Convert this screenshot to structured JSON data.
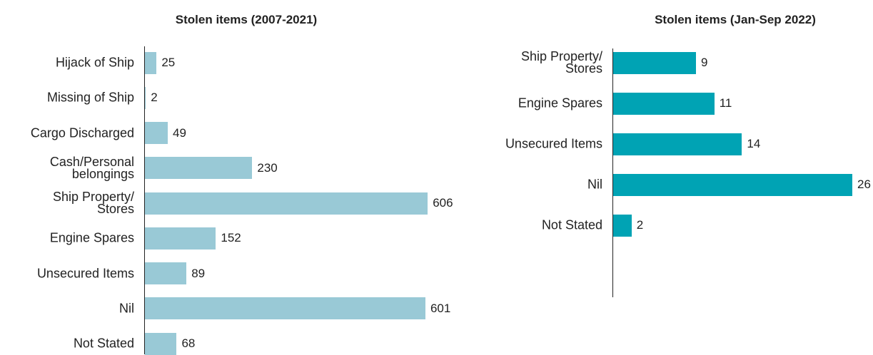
{
  "chart_data": [
    {
      "type": "bar",
      "orientation": "horizontal",
      "title": "Stolen items (2007-2021)",
      "categories": [
        "Hijack of Ship",
        "Missing of Ship",
        "Cargo Discharged",
        "Cash/Personal\nbelongings",
        "Ship Property/\nStores",
        "Engine Spares",
        "Unsecured Items",
        "Nil",
        "Not Stated"
      ],
      "values": [
        25,
        2,
        49,
        230,
        606,
        152,
        89,
        601,
        68
      ],
      "color": "#99c9d6",
      "xlim": [
        0,
        650
      ]
    },
    {
      "type": "bar",
      "orientation": "horizontal",
      "title": "Stolen items (Jan-Sep 2022)",
      "categories": [
        "Ship Property/\nStores",
        "Engine Spares",
        "Unsecured Items",
        "Nil",
        "Not Stated"
      ],
      "values": [
        9,
        11,
        14,
        26,
        2
      ],
      "color": "#00a3b4",
      "xlim": [
        0,
        26
      ]
    }
  ]
}
